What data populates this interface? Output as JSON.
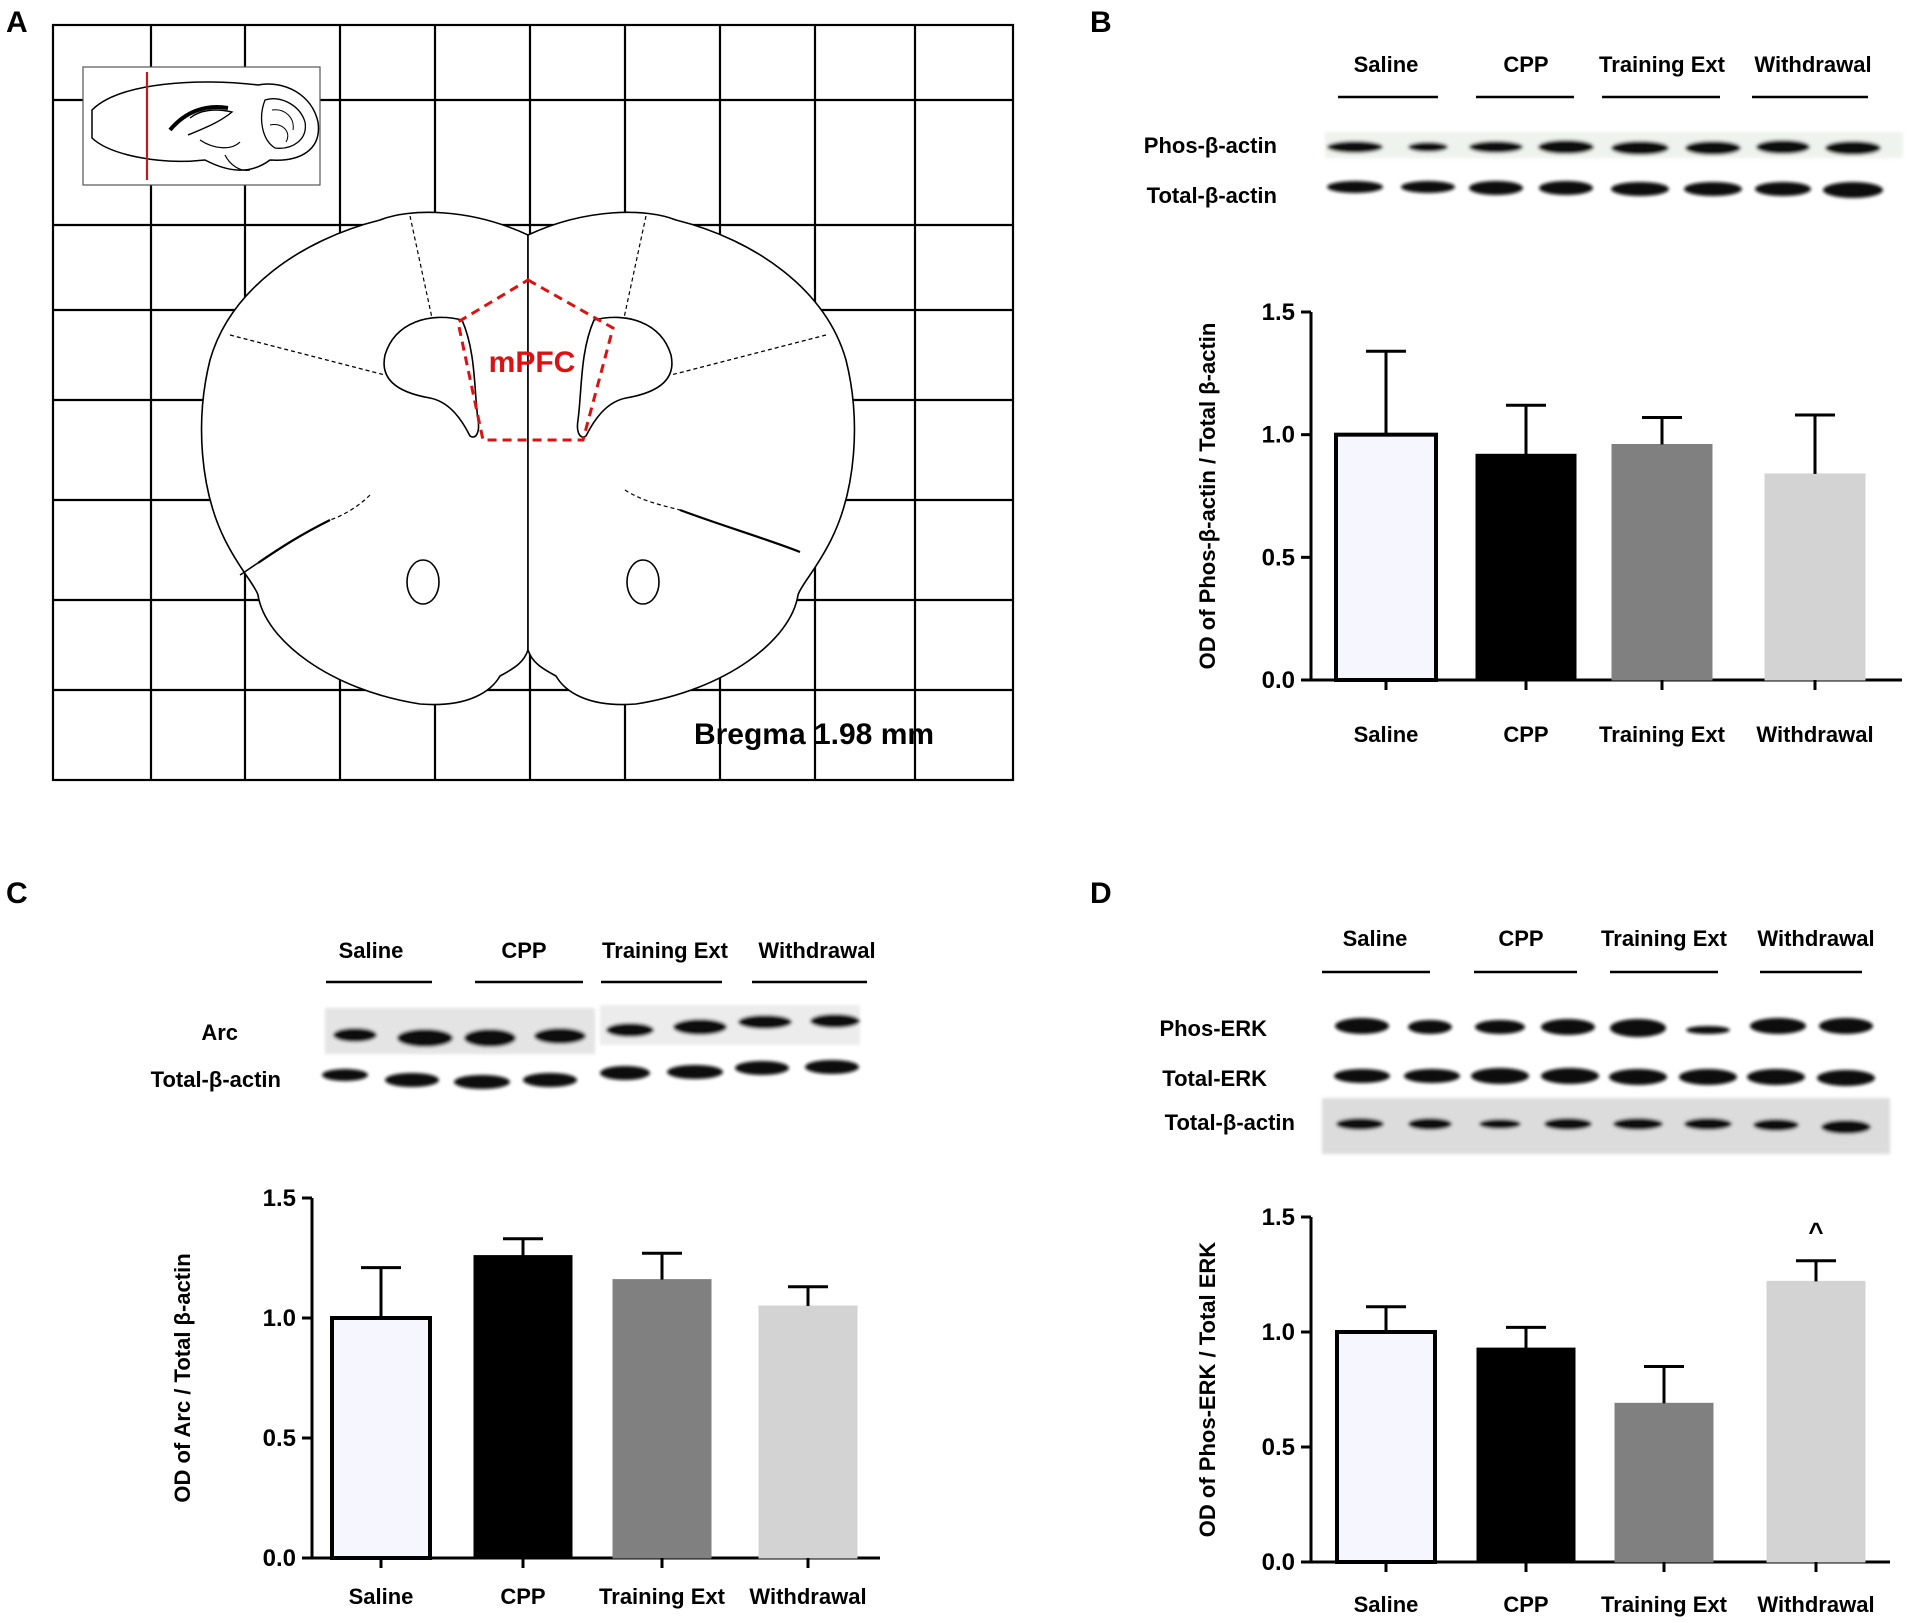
{
  "panels": {
    "A": {
      "letter": "A",
      "region_label": "mPFC",
      "bregma_label": "Bregma 1.98 mm"
    },
    "B": {
      "letter": "B",
      "blot_groups": [
        "Saline",
        "CPP",
        "Training Ext",
        "Withdrawal"
      ],
      "blot_rows": [
        "Phos-β-actin",
        "Total-β-actin"
      ]
    },
    "C": {
      "letter": "C",
      "blot_groups": [
        "Saline",
        "CPP",
        "Training Ext",
        "Withdrawal"
      ],
      "blot_rows": [
        "Arc",
        "Total-β-actin"
      ]
    },
    "D": {
      "letter": "D",
      "blot_groups": [
        "Saline",
        "CPP",
        "Training Ext",
        "Withdrawal"
      ],
      "blot_rows": [
        "Phos-ERK",
        "Total-ERK",
        "Total-β-actin"
      ]
    }
  },
  "colors": {
    "saline": "#f6f6ff",
    "cpp": "#000000",
    "training_ext": "#808080",
    "withdrawal": "#d3d3d3",
    "mpfc": "#dd1111"
  },
  "chart_data": [
    {
      "panel": "B",
      "type": "bar",
      "categories": [
        "Saline",
        "CPP",
        "Training Ext",
        "Withdrawal"
      ],
      "values": [
        1.0,
        0.92,
        0.96,
        0.84
      ],
      "error_upper": [
        1.34,
        1.12,
        1.07,
        1.08
      ],
      "ylabel": "OD of Phos-β-actin / Total β-actin",
      "xlabel": "",
      "ylim": [
        0,
        1.5
      ],
      "yticks": [
        "0.0",
        "0.5",
        "1.0",
        "1.5"
      ],
      "annotations": []
    },
    {
      "panel": "C",
      "type": "bar",
      "categories": [
        "Saline",
        "CPP",
        "Training Ext",
        "Withdrawal"
      ],
      "values": [
        1.0,
        1.26,
        1.16,
        1.05
      ],
      "error_upper": [
        1.21,
        1.33,
        1.27,
        1.13
      ],
      "ylabel": "OD of Arc / Total β-actin",
      "xlabel": "",
      "ylim": [
        0,
        1.5
      ],
      "yticks": [
        "0.0",
        "0.5",
        "1.0",
        "1.5"
      ],
      "annotations": []
    },
    {
      "panel": "D",
      "type": "bar",
      "categories": [
        "Saline",
        "CPP",
        "Training Ext",
        "Withdrawal"
      ],
      "values": [
        1.0,
        0.93,
        0.69,
        1.22
      ],
      "error_upper": [
        1.11,
        1.02,
        0.85,
        1.31
      ],
      "ylabel": "OD of Phos-ERK / Total ERK",
      "xlabel": "",
      "ylim": [
        0,
        1.5
      ],
      "yticks": [
        "0.0",
        "0.5",
        "1.0",
        "1.5"
      ],
      "annotations": [
        {
          "category": "Withdrawal",
          "text": "^"
        }
      ]
    }
  ]
}
